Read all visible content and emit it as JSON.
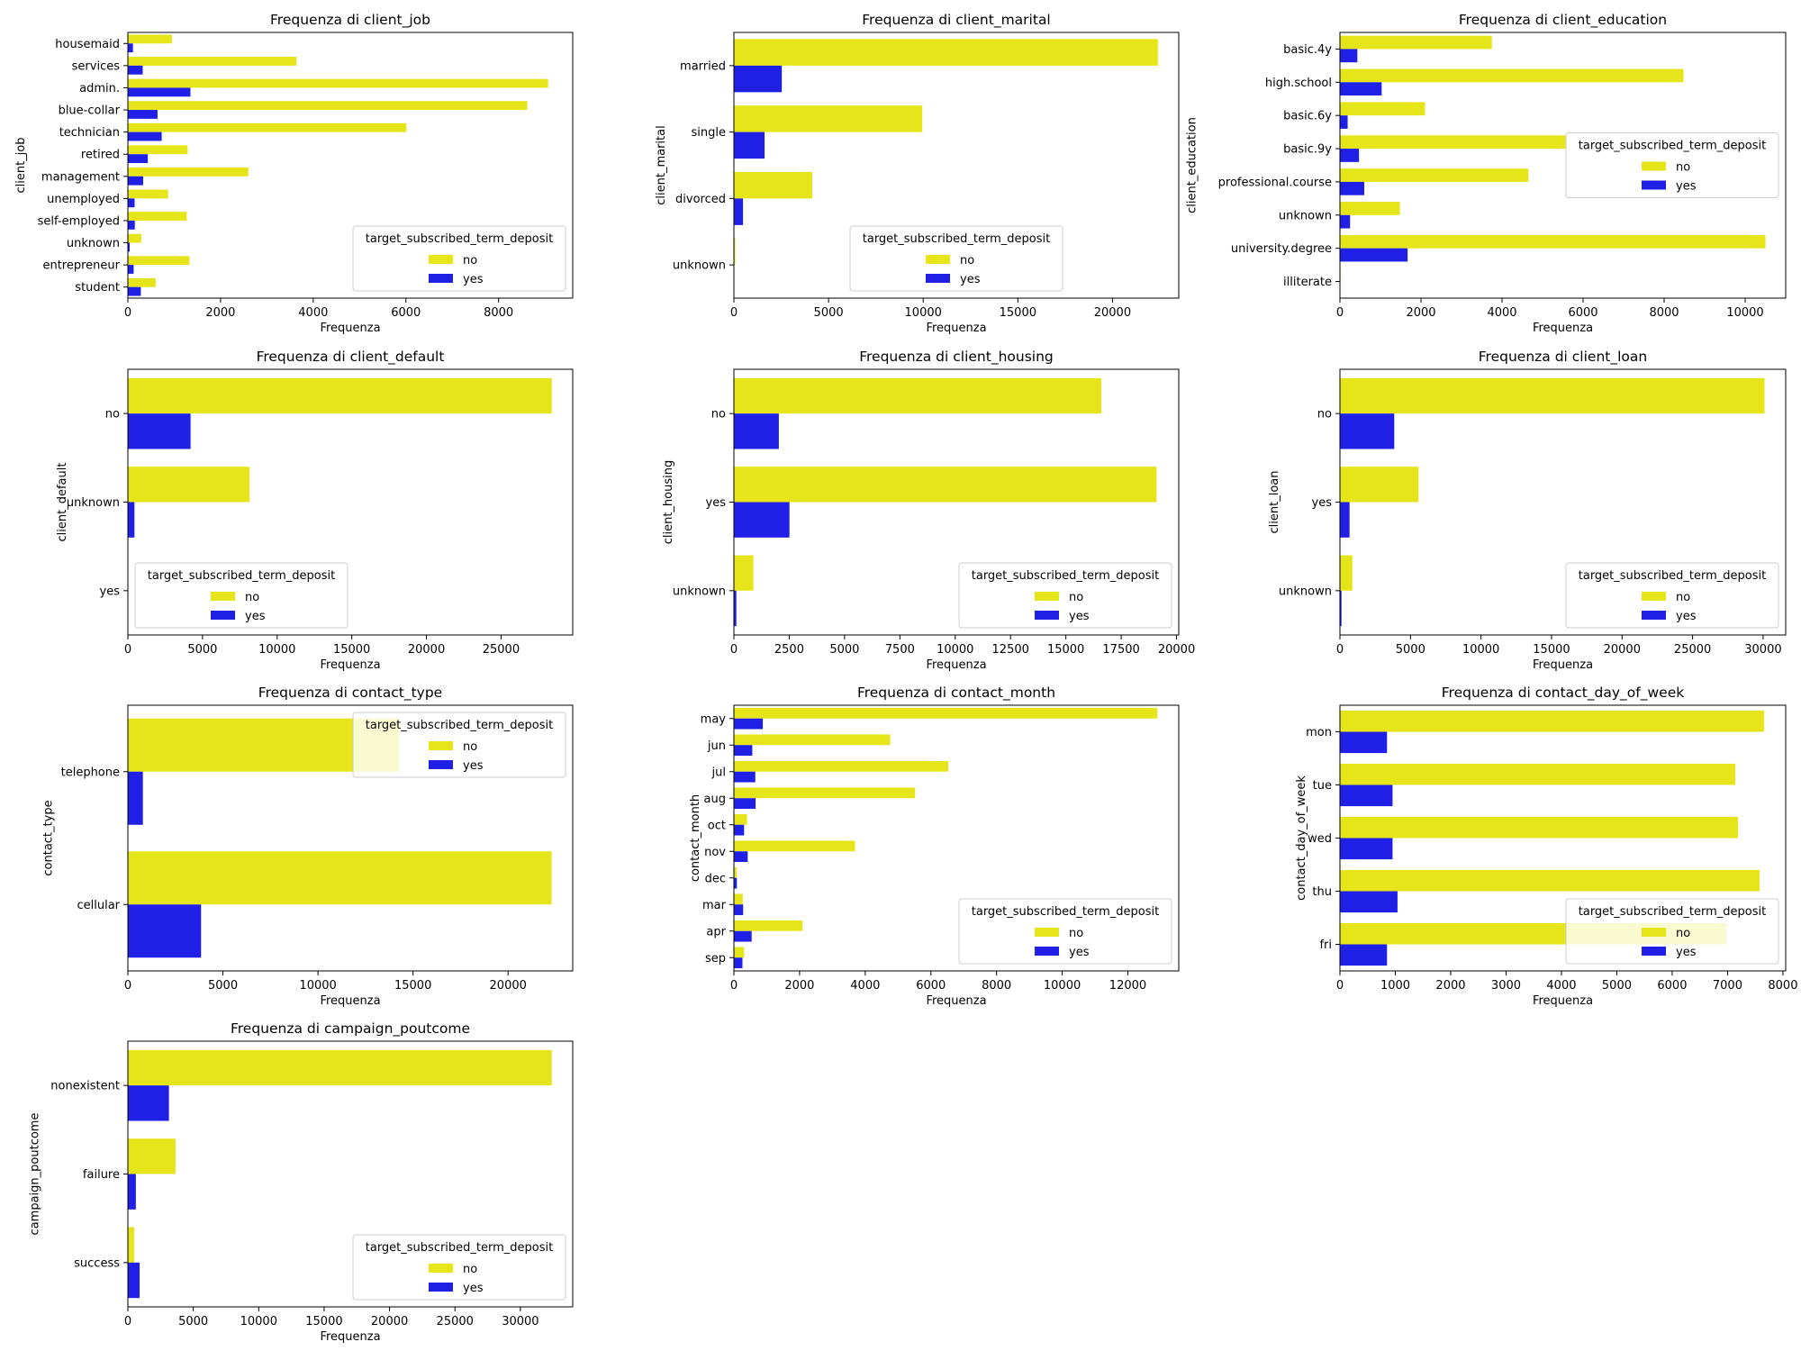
{
  "legend": {
    "title": "target_subscribed_term_deposit",
    "entries": [
      "no",
      "yes"
    ]
  },
  "colors": {
    "no": "#e5e51a",
    "yes": "#1f1fe6"
  },
  "chart_data": [
    {
      "type": "bar",
      "orientation": "horizontal",
      "title": "Frequenza di client_job",
      "xlabel": "Frequenza",
      "ylabel": "client_job",
      "categories": [
        "housemaid",
        "services",
        "admin.",
        "blue-collar",
        "technician",
        "retired",
        "management",
        "unemployed",
        "self-employed",
        "unknown",
        "entrepreneur",
        "student"
      ],
      "series": [
        {
          "name": "no",
          "values": [
            950,
            3640,
            9070,
            8620,
            6010,
            1290,
            2600,
            870,
            1270,
            290,
            1330,
            600
          ]
        },
        {
          "name": "yes",
          "values": [
            110,
            320,
            1350,
            640,
            730,
            430,
            330,
            145,
            150,
            40,
            125,
            280
          ]
        }
      ],
      "xlim": [
        0,
        9600
      ],
      "xticks": [
        0,
        2000,
        4000,
        6000,
        8000
      ],
      "legend_position": "lower right"
    },
    {
      "type": "bar",
      "orientation": "horizontal",
      "title": "Frequenza di client_marital",
      "xlabel": "Frequenza",
      "ylabel": "client_marital",
      "categories": [
        "married",
        "single",
        "divorced",
        "unknown"
      ],
      "series": [
        {
          "name": "no",
          "values": [
            22400,
            9950,
            4140,
            70
          ]
        },
        {
          "name": "yes",
          "values": [
            2530,
            1620,
            480,
            10
          ]
        }
      ],
      "xlim": [
        0,
        23500
      ],
      "xticks": [
        0,
        5000,
        10000,
        15000,
        20000
      ],
      "legend_position": "lower center"
    },
    {
      "type": "bar",
      "orientation": "horizontal",
      "title": "Frequenza di client_education",
      "xlabel": "Frequenza",
      "ylabel": "client_education",
      "categories": [
        "basic.4y",
        "high.school",
        "basic.6y",
        "basic.9y",
        "professional.course",
        "unknown",
        "university.degree",
        "illiterate"
      ],
      "series": [
        {
          "name": "no",
          "values": [
            3750,
            8480,
            2100,
            5570,
            4650,
            1480,
            10500,
            14
          ]
        },
        {
          "name": "yes",
          "values": [
            430,
            1030,
            190,
            470,
            600,
            250,
            1670,
            4
          ]
        }
      ],
      "xlim": [
        0,
        11000
      ],
      "xticks": [
        0,
        2000,
        4000,
        6000,
        8000,
        10000
      ],
      "legend_position": "center right"
    },
    {
      "type": "bar",
      "orientation": "horizontal",
      "title": "Frequenza di client_default",
      "xlabel": "Frequenza",
      "ylabel": "client_default",
      "categories": [
        "no",
        "unknown",
        "yes"
      ],
      "series": [
        {
          "name": "no",
          "values": [
            28400,
            8150,
            3
          ]
        },
        {
          "name": "yes",
          "values": [
            4200,
            440,
            0
          ]
        }
      ],
      "xlim": [
        0,
        29800
      ],
      "xticks": [
        0,
        5000,
        10000,
        15000,
        20000,
        25000
      ],
      "legend_position": "lower left"
    },
    {
      "type": "bar",
      "orientation": "horizontal",
      "title": "Frequenza di client_housing",
      "xlabel": "Frequenza",
      "ylabel": "client_housing",
      "categories": [
        "no",
        "yes",
        "unknown"
      ],
      "series": [
        {
          "name": "no",
          "values": [
            16600,
            19100,
            880
          ]
        },
        {
          "name": "yes",
          "values": [
            2030,
            2510,
            110
          ]
        }
      ],
      "xlim": [
        0,
        20100
      ],
      "xticks": [
        0,
        2500,
        5000,
        7500,
        10000,
        12500,
        15000,
        17500,
        20000
      ],
      "legend_position": "lower right"
    },
    {
      "type": "bar",
      "orientation": "horizontal",
      "title": "Frequenza di client_loan",
      "xlabel": "Frequenza",
      "ylabel": "client_loan",
      "categories": [
        "no",
        "yes",
        "unknown"
      ],
      "series": [
        {
          "name": "no",
          "values": [
            30100,
            5570,
            880
          ]
        },
        {
          "name": "yes",
          "values": [
            3850,
            680,
            110
          ]
        }
      ],
      "xlim": [
        0,
        31600
      ],
      "xticks": [
        0,
        5000,
        10000,
        15000,
        20000,
        25000,
        30000
      ],
      "legend_position": "lower right"
    },
    {
      "type": "bar",
      "orientation": "horizontal",
      "title": "Frequenza di contact_type",
      "xlabel": "Frequenza",
      "ylabel": "contact_type",
      "categories": [
        "telephone",
        "cellular"
      ],
      "series": [
        {
          "name": "no",
          "values": [
            14260,
            22290
          ]
        },
        {
          "name": "yes",
          "values": [
            790,
            3850
          ]
        }
      ],
      "xlim": [
        0,
        23400
      ],
      "xticks": [
        0,
        5000,
        10000,
        15000,
        20000
      ],
      "legend_position": "upper right"
    },
    {
      "type": "bar",
      "orientation": "horizontal",
      "title": "Frequenza di contact_month",
      "xlabel": "Frequenza",
      "ylabel": "contact_month",
      "categories": [
        "may",
        "jun",
        "jul",
        "aug",
        "oct",
        "nov",
        "dec",
        "mar",
        "apr",
        "sep"
      ],
      "series": [
        {
          "name": "no",
          "values": [
            12900,
            4760,
            6530,
            5520,
            400,
            3690,
            90,
            270,
            2090,
            310
          ]
        },
        {
          "name": "yes",
          "values": [
            880,
            560,
            650,
            660,
            310,
            420,
            90,
            280,
            540,
            260
          ]
        }
      ],
      "xlim": [
        0,
        13550
      ],
      "xticks": [
        0,
        2000,
        4000,
        6000,
        8000,
        10000,
        12000
      ],
      "legend_position": "lower right"
    },
    {
      "type": "bar",
      "orientation": "horizontal",
      "title": "Frequenza di contact_day_of_week",
      "xlabel": "Frequenza",
      "ylabel": "contact_day_of_week",
      "categories": [
        "mon",
        "tue",
        "wed",
        "thu",
        "fri"
      ],
      "series": [
        {
          "name": "no",
          "values": [
            7660,
            7140,
            7190,
            7580,
            6980
          ]
        },
        {
          "name": "yes",
          "values": [
            850,
            950,
            950,
            1040,
            850
          ]
        }
      ],
      "xlim": [
        0,
        8050
      ],
      "xticks": [
        0,
        1000,
        2000,
        3000,
        4000,
        5000,
        6000,
        7000,
        8000
      ],
      "legend_position": "lower right"
    },
    {
      "type": "bar",
      "orientation": "horizontal",
      "title": "Frequenza di campaign_poutcome",
      "xlabel": "Frequenza",
      "ylabel": "campaign_poutcome",
      "categories": [
        "nonexistent",
        "failure",
        "success"
      ],
      "series": [
        {
          "name": "no",
          "values": [
            32400,
            3640,
            480
          ]
        },
        {
          "name": "yes",
          "values": [
            3140,
            610,
            900
          ]
        }
      ],
      "xlim": [
        0,
        34000
      ],
      "xticks": [
        0,
        5000,
        10000,
        15000,
        20000,
        25000,
        30000
      ],
      "legend_position": "lower right"
    }
  ]
}
